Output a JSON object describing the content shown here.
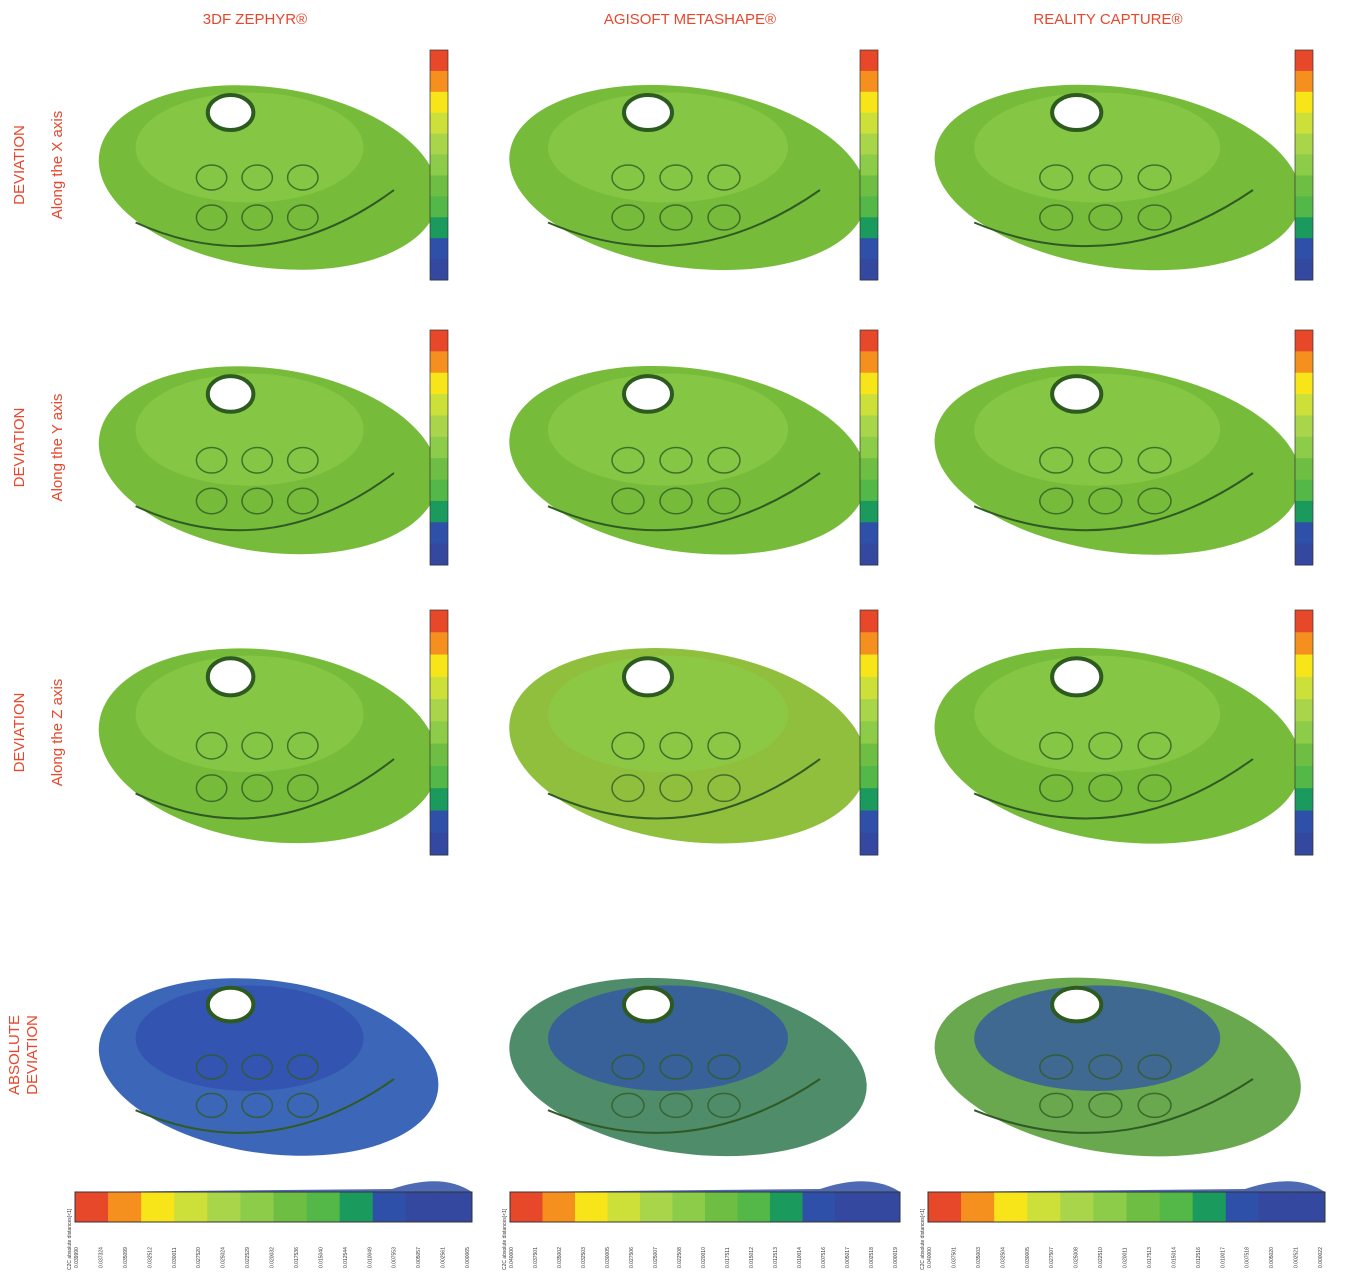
{
  "header": {
    "columns": [
      "3DF ZEPHYR®",
      "AGISOFT METASHAPE®",
      "REALITY CAPTURE®"
    ]
  },
  "rows": [
    {
      "label": [
        "DEVIATION"
      ],
      "sublabel": "Along the X axis"
    },
    {
      "label": [
        "DEVIATION"
      ],
      "sublabel": "Along the Y axis"
    },
    {
      "label": [
        "DEVIATION"
      ],
      "sublabel": "Along the Z axis"
    },
    {
      "label": [
        "ABSOLUTE",
        "DEVIATION"
      ]
    }
  ],
  "scales": [
    {
      "title": "C2C absolute distances[<1]",
      "labels": [
        "0.039990",
        "0.037324",
        "0.035099",
        "0.032512",
        "0.030011",
        "0.027520",
        "0.025024",
        "0.022529",
        "0.020032",
        "0.017536",
        "0.015040",
        "0.012544",
        "0.010049",
        "0.007553",
        "0.005057",
        "0.002561",
        "0.000065"
      ]
    },
    {
      "title": "C2C absolute distances[<1]",
      "labels": [
        "0.040000",
        "0.037501",
        "0.035002",
        "0.032503",
        "0.030005",
        "0.027506",
        "0.025007",
        "0.022508",
        "0.020010",
        "0.017511",
        "0.015012",
        "0.012513",
        "0.010014",
        "0.007516",
        "0.005017",
        "0.002518",
        "0.000019"
      ]
    },
    {
      "title": "C2C absolute distances[<1]",
      "labels": [
        "0.040000",
        "0.037501",
        "0.035003",
        "0.032504",
        "0.030005",
        "0.027507",
        "0.025008",
        "0.022510",
        "0.020011",
        "0.017513",
        "0.015014",
        "0.012516",
        "0.010017",
        "0.007518",
        "0.005020",
        "0.002521",
        "0.000022"
      ]
    }
  ]
}
